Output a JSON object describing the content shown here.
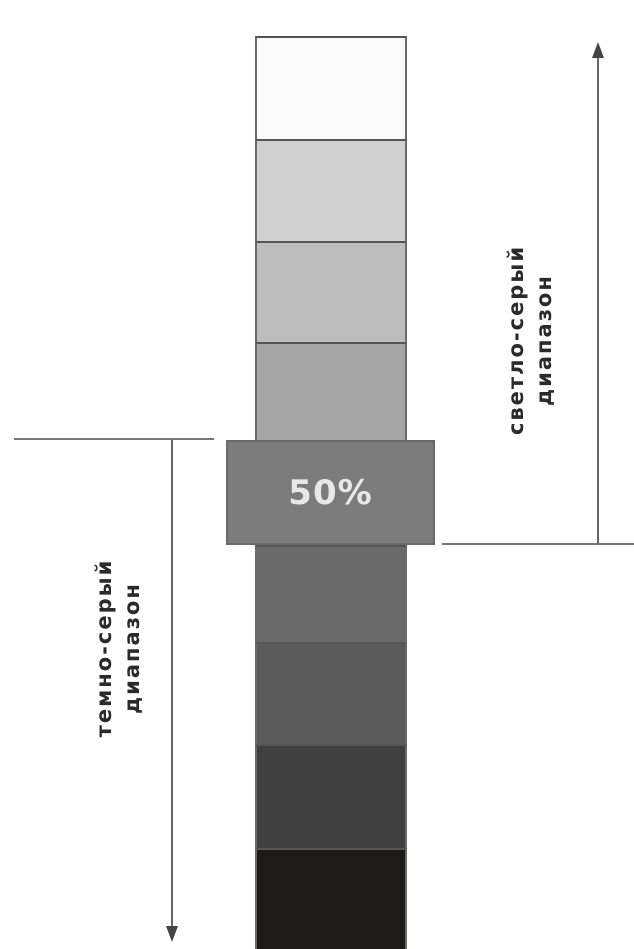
{
  "midpoint_label": "50%",
  "light_range": {
    "line1": "светло-серый",
    "line2": "диапазон"
  },
  "dark_range": {
    "line1": "темно-серый",
    "line2": "диапазон"
  },
  "gray_steps": [
    {
      "color": "#fbfbfb"
    },
    {
      "color": "#d0d0d0"
    },
    {
      "color": "#bdbdbd"
    },
    {
      "color": "#a6a6a6"
    },
    {
      "color": "#6a6a6a"
    },
    {
      "color": "#5a5a5a"
    },
    {
      "color": "#3f3f3f"
    },
    {
      "color": "#1d1a18"
    }
  ],
  "midpoint_color": "#7c7c7c"
}
